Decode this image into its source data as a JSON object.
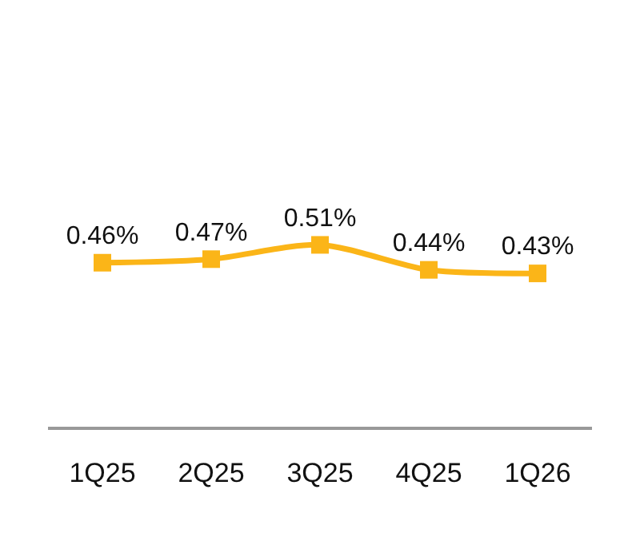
{
  "chart_data": {
    "type": "line",
    "categories": [
      "1Q25",
      "2Q25",
      "3Q25",
      "4Q25",
      "1Q26"
    ],
    "series": [
      {
        "color": "#fbb518",
        "values": [
          0.46,
          0.47,
          0.51,
          0.44,
          0.43
        ],
        "value_labels": [
          "0.46%",
          "0.47%",
          "0.51%",
          "0.44%",
          "0.43%"
        ]
      }
    ],
    "marker": "square",
    "line_style": "solid",
    "tick_labels": "x",
    "grid": false,
    "legend": false
  }
}
